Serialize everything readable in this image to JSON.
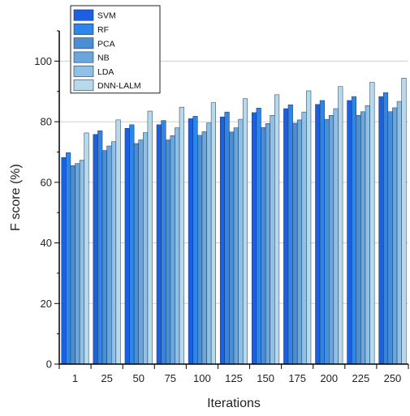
{
  "chart_data": {
    "type": "bar",
    "xlabel": "Iterations",
    "ylabel": "F score (%)",
    "ylim": [
      0,
      110
    ],
    "yticks": [
      0,
      20,
      40,
      60,
      80,
      100
    ],
    "grid": "horizontal-major",
    "legend_position": "top-left",
    "categories": [
      "1",
      "25",
      "50",
      "75",
      "100",
      "125",
      "150",
      "175",
      "200",
      "225",
      "250"
    ],
    "series": [
      {
        "name": "SVM",
        "color": "#1c5fe0",
        "values": [
          68.2,
          75.8,
          77.8,
          79.0,
          81.0,
          81.6,
          83.0,
          84.3,
          85.7,
          87.0,
          88.3
        ]
      },
      {
        "name": "RF",
        "color": "#2e86ea",
        "values": [
          69.8,
          77.0,
          79.0,
          80.4,
          81.8,
          83.2,
          84.5,
          85.6,
          87.0,
          88.3,
          89.6
        ]
      },
      {
        "name": "PCA",
        "color": "#4a8fd6",
        "values": [
          65.5,
          70.5,
          72.8,
          74.0,
          75.5,
          76.6,
          78.1,
          79.5,
          80.8,
          82.1,
          83.3
        ]
      },
      {
        "name": "NB",
        "color": "#6aa6dc",
        "values": [
          66.2,
          72.0,
          74.0,
          75.4,
          76.7,
          78.0,
          79.4,
          80.6,
          82.1,
          83.3,
          84.6
        ]
      },
      {
        "name": "LDA",
        "color": "#8ec0e8",
        "values": [
          67.3,
          73.4,
          76.4,
          78.0,
          79.6,
          80.8,
          82.1,
          83.2,
          84.3,
          85.3,
          86.7
        ]
      },
      {
        "name": "DNN-LALM",
        "color": "#b6d9ec",
        "values": [
          76.3,
          80.6,
          83.5,
          84.8,
          86.3,
          87.6,
          88.9,
          90.2,
          91.6,
          93.0,
          94.4
        ]
      }
    ]
  }
}
